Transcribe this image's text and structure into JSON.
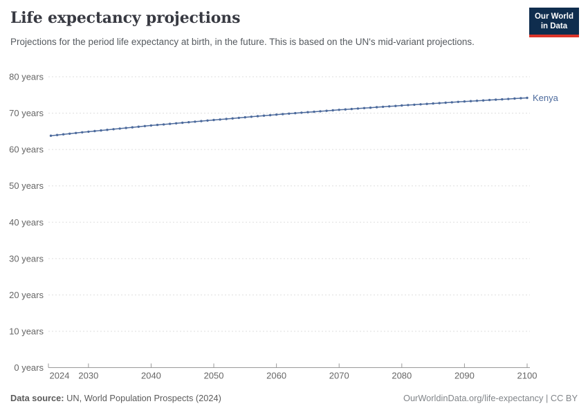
{
  "header": {
    "title": "Life expectancy projections",
    "subtitle": "Projections for the period life expectancy at birth, in the future. This is based on the UN's mid-variant projections.",
    "logo": {
      "line1": "Our World",
      "line2": "in Data"
    }
  },
  "footer": {
    "source_label": "Data source:",
    "source_text": "UN, World Population Prospects (2024)",
    "credit": "OurWorldinData.org/life-expectancy | CC BY"
  },
  "colors": {
    "series": "#4C6A9C",
    "grid": "#dddddd",
    "axis": "#999999",
    "tick_text": "#666666",
    "logo_bg": "#0f2d4e",
    "logo_red": "#dc352a"
  },
  "chart_data": {
    "type": "line",
    "title": "Life expectancy projections",
    "xlabel": "",
    "ylabel": "",
    "xlim": [
      2024,
      2100
    ],
    "ylim": [
      0,
      80
    ],
    "grid": "horizontal-dashed",
    "legend_position": "end-of-line-label",
    "y_ticks": [
      {
        "value": 0,
        "label": "0 years"
      },
      {
        "value": 10,
        "label": "10 years"
      },
      {
        "value": 20,
        "label": "20 years"
      },
      {
        "value": 30,
        "label": "30 years"
      },
      {
        "value": 40,
        "label": "40 years"
      },
      {
        "value": 50,
        "label": "50 years"
      },
      {
        "value": 60,
        "label": "60 years"
      },
      {
        "value": 70,
        "label": "70 years"
      },
      {
        "value": 80,
        "label": "80 years"
      }
    ],
    "x_ticks": [
      2024,
      2030,
      2040,
      2050,
      2060,
      2070,
      2080,
      2090,
      2100
    ],
    "x": [
      2024,
      2025,
      2026,
      2027,
      2028,
      2029,
      2030,
      2031,
      2032,
      2033,
      2034,
      2035,
      2036,
      2037,
      2038,
      2039,
      2040,
      2041,
      2042,
      2043,
      2044,
      2045,
      2046,
      2047,
      2048,
      2049,
      2050,
      2051,
      2052,
      2053,
      2054,
      2055,
      2056,
      2057,
      2058,
      2059,
      2060,
      2061,
      2062,
      2063,
      2064,
      2065,
      2066,
      2067,
      2068,
      2069,
      2070,
      2071,
      2072,
      2073,
      2074,
      2075,
      2076,
      2077,
      2078,
      2079,
      2080,
      2081,
      2082,
      2083,
      2084,
      2085,
      2086,
      2087,
      2088,
      2089,
      2090,
      2091,
      2092,
      2093,
      2094,
      2095,
      2096,
      2097,
      2098,
      2099,
      2100
    ],
    "series": [
      {
        "name": "Kenya",
        "color": "#4C6A9C",
        "values": [
          63.8,
          63.98,
          64.17,
          64.35,
          64.53,
          64.72,
          64.9,
          65.07,
          65.24,
          65.41,
          65.58,
          65.75,
          65.92,
          66.09,
          66.26,
          66.43,
          66.6,
          66.75,
          66.9,
          67.05,
          67.2,
          67.35,
          67.5,
          67.65,
          67.8,
          67.95,
          68.1,
          68.25,
          68.4,
          68.55,
          68.7,
          68.85,
          69.0,
          69.15,
          69.3,
          69.45,
          69.6,
          69.73,
          69.86,
          69.99,
          70.12,
          70.25,
          70.38,
          70.51,
          70.64,
          70.77,
          70.9,
          71.02,
          71.14,
          71.26,
          71.38,
          71.5,
          71.62,
          71.74,
          71.86,
          71.98,
          72.1,
          72.21,
          72.32,
          72.43,
          72.54,
          72.65,
          72.76,
          72.87,
          72.98,
          73.09,
          73.2,
          73.3,
          73.4,
          73.5,
          73.6,
          73.7,
          73.8,
          73.9,
          74.0,
          74.1,
          74.2
        ]
      }
    ]
  }
}
